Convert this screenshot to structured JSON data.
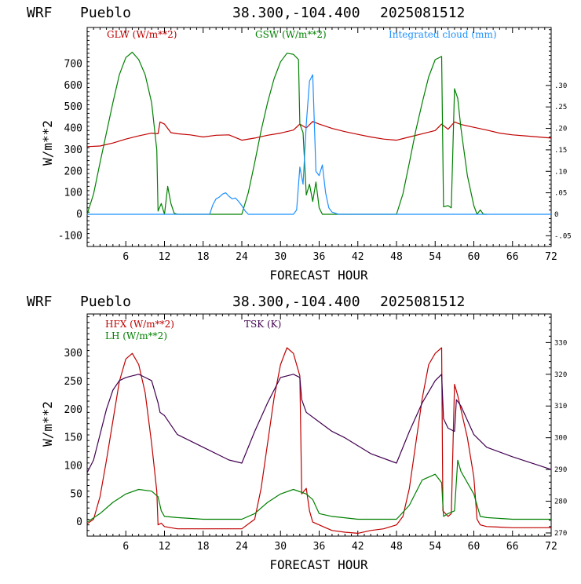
{
  "chart_data": [
    {
      "type": "line",
      "header": {
        "model": "WRF",
        "station": "Pueblo",
        "coords": "38.300,-104.400",
        "init": "2025081512"
      },
      "xlabel": "FORECAST HOUR",
      "ylabel": "W/m**2",
      "xlim": [
        0,
        72
      ],
      "ylim": [
        -150,
        870
      ],
      "x_ticks": [
        6,
        12,
        18,
        24,
        30,
        36,
        42,
        48,
        54,
        60,
        66,
        72
      ],
      "y_ticks": [
        -100,
        0,
        100,
        200,
        300,
        400,
        500,
        600,
        700
      ],
      "y2lim": [
        -0.075,
        0.435
      ],
      "y2_ticks": [
        -0.05,
        0,
        0.05,
        0.1,
        0.15,
        0.2,
        0.25,
        0.3
      ],
      "y2_tick_labels": [
        "-.05",
        "0",
        ".05",
        ".10",
        ".15",
        ".20",
        ".25",
        ".30"
      ],
      "series": [
        {
          "name": "GLW (W/m**2)",
          "color": "#c00000",
          "axis": "left",
          "x": [
            0,
            2,
            4,
            6,
            8,
            10,
            11,
            11.3,
            12,
            13,
            14,
            16,
            18,
            20,
            22,
            24,
            26,
            28,
            30,
            32,
            33,
            34,
            35,
            36,
            37,
            38,
            40,
            42,
            44,
            46,
            48,
            50,
            52,
            54,
            55,
            56,
            57,
            58,
            60,
            62,
            64,
            66,
            68,
            70,
            72
          ],
          "y": [
            315,
            318,
            332,
            350,
            365,
            378,
            375,
            430,
            420,
            380,
            375,
            370,
            360,
            368,
            370,
            345,
            355,
            368,
            378,
            392,
            420,
            402,
            432,
            420,
            410,
            400,
            385,
            372,
            360,
            350,
            345,
            360,
            375,
            390,
            420,
            396,
            430,
            418,
            405,
            392,
            378,
            370,
            365,
            360,
            355
          ]
        },
        {
          "name": "GSW (W/m**2)",
          "color": "#008000",
          "axis": "left",
          "x": [
            0,
            1,
            2,
            3,
            4,
            5,
            6,
            7,
            8,
            9,
            10,
            10.8,
            11,
            11.5,
            12,
            12.5,
            13,
            13.5,
            14,
            23,
            24,
            25,
            26,
            27,
            28,
            29,
            30,
            31,
            32,
            32.8,
            33,
            33.5,
            34,
            34.5,
            35,
            35.5,
            36,
            36.5,
            37,
            47,
            48,
            49,
            50,
            51,
            52,
            53,
            54,
            55,
            55.3,
            56,
            56.5,
            57,
            57.5,
            58,
            59,
            60,
            60.5,
            61,
            61.5,
            62
          ],
          "y": [
            0,
            95,
            240,
            380,
            520,
            650,
            730,
            755,
            720,
            650,
            520,
            300,
            15,
            50,
            0,
            130,
            50,
            5,
            0,
            0,
            0,
            100,
            240,
            390,
            520,
            630,
            710,
            750,
            745,
            720,
            420,
            380,
            90,
            140,
            60,
            150,
            30,
            0,
            0,
            0,
            0,
            95,
            240,
            390,
            520,
            640,
            720,
            735,
            35,
            40,
            30,
            585,
            540,
            400,
            180,
            40,
            0,
            20,
            0,
            0
          ]
        },
        {
          "name": "Integrated cloud (mm)",
          "color": "#1e90ff",
          "axis": "right",
          "x": [
            0,
            19,
            19.5,
            20,
            20.5,
            21,
            21.5,
            22,
            22.5,
            23,
            23.5,
            24,
            24.5,
            25,
            26,
            32,
            32.5,
            33,
            33.5,
            34,
            34.5,
            35,
            35.5,
            36,
            36.5,
            37,
            37.5,
            38,
            39,
            40,
            72
          ],
          "y": [
            0,
            0,
            0.022,
            0.036,
            0.04,
            0.047,
            0.05,
            0.042,
            0.036,
            0.038,
            0.03,
            0.02,
            0.008,
            0,
            0,
            0,
            0.01,
            0.11,
            0.07,
            0.21,
            0.31,
            0.325,
            0.1,
            0.09,
            0.115,
            0.05,
            0.015,
            0.005,
            0,
            0,
            0
          ]
        }
      ]
    },
    {
      "type": "line",
      "header": {
        "model": "WRF",
        "station": "Pueblo",
        "coords": "38.300,-104.400",
        "init": "2025081512"
      },
      "xlabel": "FORECAST HOUR",
      "ylabel": "W/m**2",
      "xlim": [
        0,
        72
      ],
      "ylim": [
        -25,
        370
      ],
      "x_ticks": [
        6,
        12,
        18,
        24,
        30,
        36,
        42,
        48,
        54,
        60,
        66,
        72
      ],
      "y_ticks": [
        0,
        50,
        100,
        150,
        200,
        250,
        300
      ],
      "y2lim": [
        269,
        339
      ],
      "y2_ticks": [
        270,
        280,
        290,
        300,
        310,
        320,
        330
      ],
      "series": [
        {
          "name": "HFX (W/m**2)",
          "color": "#c00000",
          "axis": "left",
          "x": [
            0,
            1,
            2,
            3,
            4,
            5,
            6,
            7,
            8,
            9,
            10,
            10.8,
            11,
            11.5,
            12,
            13,
            14,
            18,
            24,
            26,
            27,
            28,
            29,
            30,
            31,
            32,
            33,
            33.3,
            34,
            34.5,
            35,
            36,
            37,
            38,
            40,
            42,
            44,
            46,
            48,
            49,
            50,
            51,
            52,
            53,
            54,
            55,
            55.2,
            56,
            56.5,
            57,
            57.5,
            58,
            59,
            60,
            60.5,
            61,
            62,
            66,
            72
          ],
          "y": [
            -3,
            5,
            45,
            110,
            180,
            250,
            290,
            300,
            280,
            230,
            140,
            55,
            -5,
            -2,
            -8,
            -10,
            -12,
            -12,
            -12,
            5,
            60,
            140,
            220,
            280,
            310,
            300,
            260,
            50,
            60,
            20,
            0,
            -5,
            -10,
            -15,
            -18,
            -20,
            -15,
            -12,
            -5,
            10,
            60,
            140,
            220,
            280,
            300,
            310,
            20,
            10,
            15,
            245,
            225,
            200,
            150,
            80,
            5,
            -5,
            -8,
            -10,
            -10
          ]
        },
        {
          "name": "LH  (W/m**2)",
          "color": "#008000",
          "axis": "left",
          "x": [
            0,
            2,
            4,
            6,
            8,
            10,
            11,
            11.5,
            12,
            14,
            18,
            24,
            26,
            28,
            30,
            32,
            34,
            35,
            36,
            38,
            42,
            48,
            50,
            52,
            54,
            55,
            55.3,
            56,
            57,
            57.5,
            58,
            60,
            61,
            62,
            66,
            72
          ],
          "y": [
            0,
            15,
            35,
            50,
            58,
            55,
            45,
            20,
            10,
            8,
            5,
            5,
            15,
            35,
            50,
            58,
            50,
            40,
            15,
            10,
            5,
            5,
            30,
            75,
            85,
            70,
            10,
            15,
            20,
            110,
            90,
            50,
            10,
            8,
            5,
            5
          ]
        },
        {
          "name": "TSK (K)",
          "color": "#400050",
          "axis": "right",
          "x": [
            0,
            1,
            2,
            3,
            4,
            5,
            6,
            7,
            8,
            9,
            10,
            11,
            11.3,
            12,
            14,
            18,
            22,
            24,
            26,
            28,
            30,
            32,
            33,
            33.3,
            34,
            36,
            38,
            40,
            44,
            48,
            50,
            52,
            54,
            55,
            55.3,
            56,
            57,
            57.3,
            58,
            60,
            62,
            66,
            72
          ],
          "y": [
            289,
            293,
            301,
            309,
            315,
            318,
            319,
            319.5,
            320,
            319,
            318,
            311,
            308,
            307,
            301,
            297,
            293,
            292,
            302,
            311,
            319,
            320,
            319,
            312,
            308,
            305,
            302,
            300,
            295,
            292,
            302,
            311,
            318,
            320,
            306,
            303,
            302,
            312,
            310,
            301,
            297,
            294,
            290
          ]
        }
      ]
    }
  ]
}
